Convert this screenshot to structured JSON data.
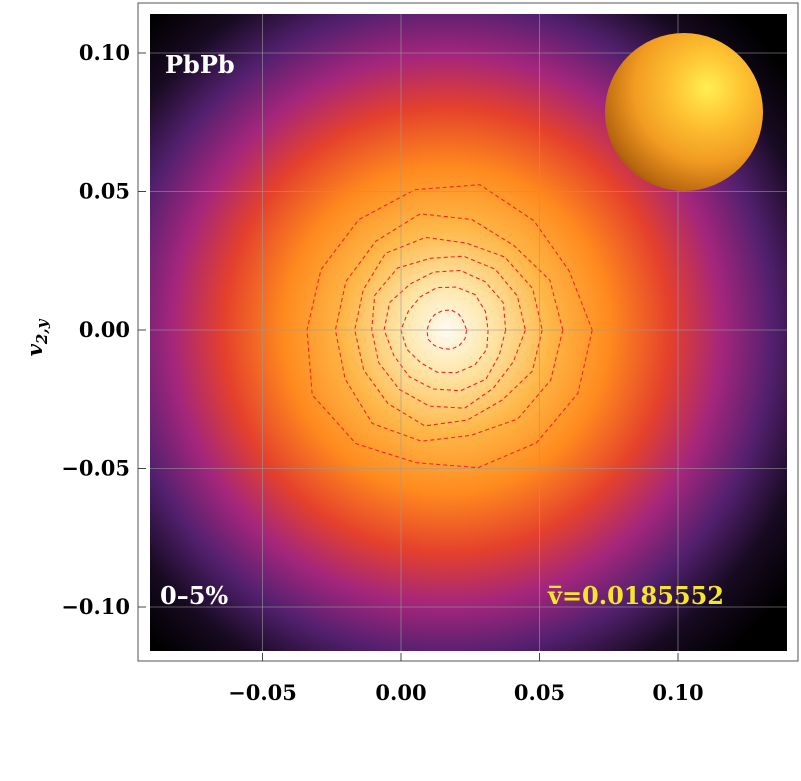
{
  "chart_data": {
    "type": "heatmap",
    "title": "",
    "xlabel": "",
    "ylabel": "v2,y",
    "ylabel_base": "v",
    "ylabel_sub": "2,y",
    "xlim": [
      -0.088,
      0.138
    ],
    "ylim": [
      -0.118,
      0.118
    ],
    "grid": true,
    "x_ticks": [
      -0.05,
      0.0,
      0.05,
      0.1
    ],
    "x_tick_labels": [
      "−0.05",
      "0.00",
      "0.05",
      "0.10"
    ],
    "y_ticks": [
      0.1,
      0.05,
      0.0,
      -0.05,
      -0.1
    ],
    "y_tick_labels": [
      "0.10",
      "0.05",
      "0.00",
      "−0.05",
      "−0.10"
    ],
    "distribution": {
      "center": [
        0.0165,
        0.0
      ],
      "sigma": 0.025
    },
    "contour_levels": [
      0.12,
      0.26,
      0.4,
      0.54,
      0.68,
      0.82,
      0.96
    ],
    "annotations": {
      "system": "PbPb",
      "centrality": "0–5%",
      "mean_label": "v̅=0.0185552"
    },
    "nucleus_icon": "gold-sphere",
    "colors": {
      "background": "#000000",
      "contour": "#ff2020",
      "system_text": "#ffffff",
      "centrality_text": "#ffffff",
      "mean_text": "#f5e62a",
      "grid": "#9a9a9a"
    }
  }
}
